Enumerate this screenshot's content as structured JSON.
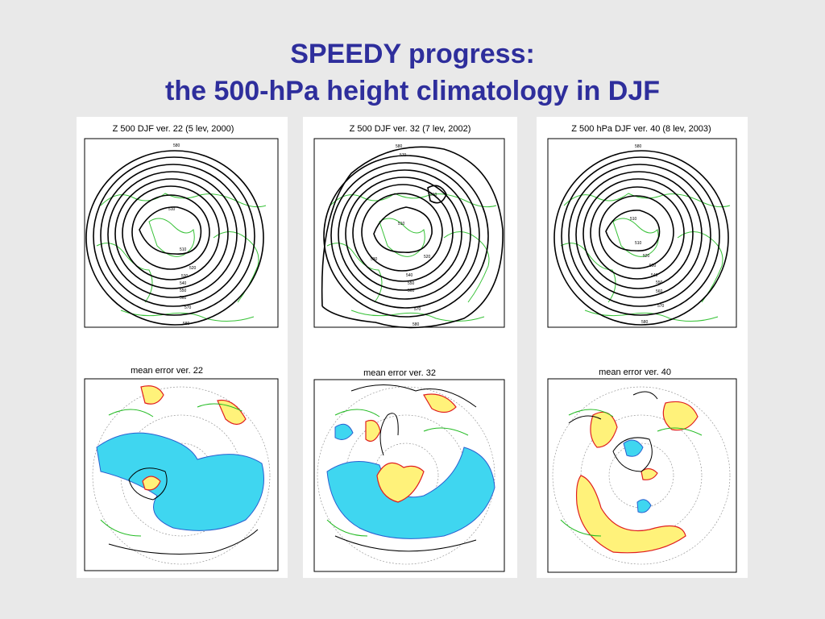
{
  "slide": {
    "title_line1": "SPEEDY progress:",
    "title_line2": "the 500-hPa height climatology in DJF"
  },
  "colors": {
    "title": "#2e2e9c",
    "background": "#e9e9e9",
    "coast": "#22bb22",
    "negative_fill": "#3fd6f0",
    "positive_fill": "#fff27a",
    "positive_line": "#e02020",
    "negative_line": "#2a5fd0",
    "contour": "#000000"
  },
  "columns": [
    {
      "top_caption": "Z 500   DJF   ver. 22 (5 lev, 2000)",
      "bottom_caption": "mean error   ver. 22",
      "contour_labels": [
        "580",
        "510",
        "510",
        "520",
        "530",
        "540",
        "550",
        "560",
        "570",
        "580"
      ]
    },
    {
      "top_caption": "Z 500   DJF   ver. 32 (7 lev, 2002)",
      "bottom_caption": "mean error   ver. 32",
      "contour_labels": [
        "580",
        "570",
        "510",
        "510",
        "520",
        "530",
        "540",
        "550",
        "560",
        "570",
        "580"
      ]
    },
    {
      "top_caption": "Z 500 hPa   DJF   ver. 40 (8 lev, 2003)",
      "bottom_caption": "mean error   ver. 40",
      "contour_labels": [
        "580",
        "510",
        "510",
        "520",
        "530",
        "540",
        "550",
        "560",
        "570",
        "580"
      ]
    }
  ]
}
